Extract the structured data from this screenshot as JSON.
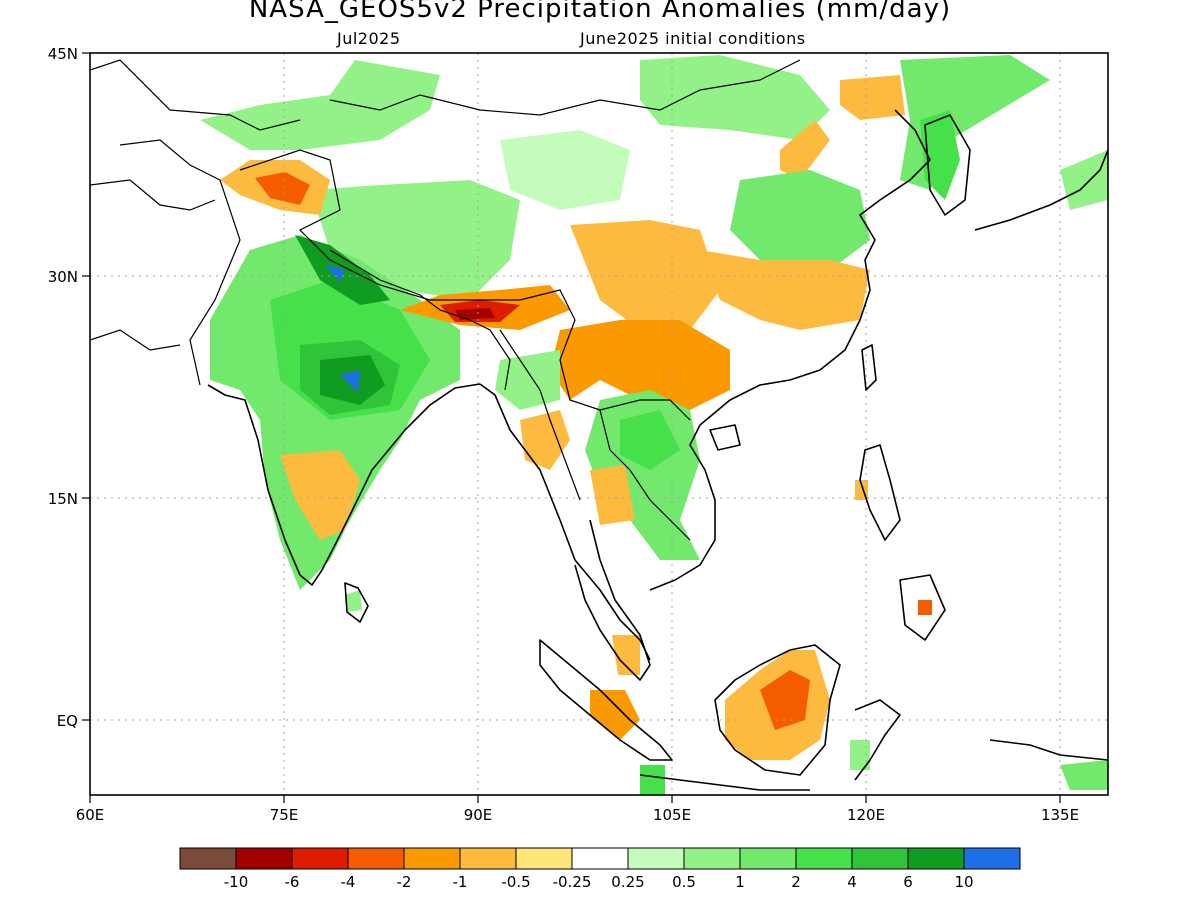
{
  "header": {
    "title": "NASA_GEOS5v2 Precipitation Anomalies (mm/day)",
    "subtitle_left": "Jul2025",
    "subtitle_right": "June2025 initial conditions"
  },
  "map": {
    "lon_labels": [
      "60E",
      "75E",
      "90E",
      "105E",
      "120E",
      "135E"
    ],
    "lat_labels": [
      "45N",
      "30N",
      "15N",
      "EQ"
    ],
    "lon_range": [
      60,
      140
    ],
    "lat_range": [
      -5,
      45
    ]
  },
  "colorbar": {
    "colors": [
      "#7a4a3a",
      "#a50000",
      "#dd1c00",
      "#f55c00",
      "#fa9900",
      "#fcbb3e",
      "#fde57a",
      "#ffffff",
      "#c4fcbb",
      "#93f287",
      "#72e86d",
      "#46e04a",
      "#2fc43a",
      "#0f9c20",
      "#1f6fe6"
    ],
    "labels": [
      "-10",
      "-6",
      "-4",
      "-2",
      "-1",
      "-0.5",
      "-0.25",
      "0.25",
      "0.5",
      "1",
      "2",
      "4",
      "6",
      "10"
    ]
  }
}
